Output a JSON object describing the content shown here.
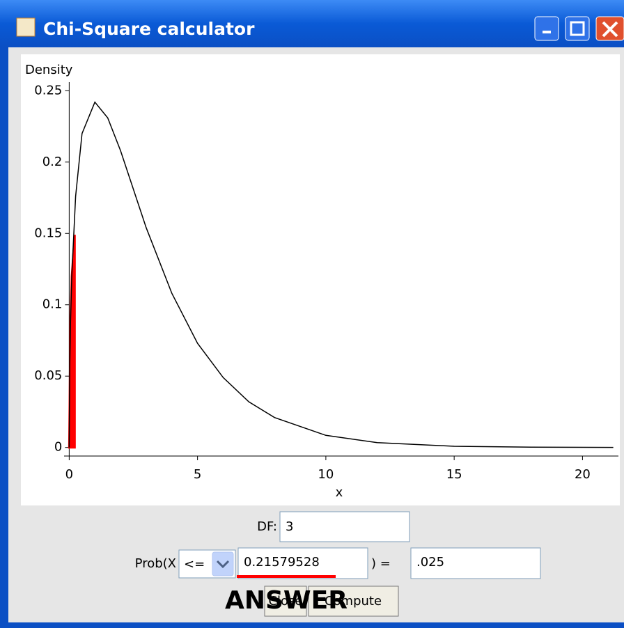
{
  "window": {
    "title": "Chi-Square calculator"
  },
  "chart_data": {
    "type": "line",
    "y_label": "Density",
    "x_label": "x",
    "curve": {
      "color": "#000000",
      "x": [
        0,
        0.02,
        0.05,
        0.1,
        0.25,
        0.5,
        1,
        1.5,
        2,
        3,
        4,
        5,
        6,
        7,
        8,
        10,
        12,
        15,
        18,
        21.2
      ],
      "values": [
        0,
        0.056,
        0.087,
        0.12,
        0.176,
        0.22,
        0.242,
        0.231,
        0.208,
        0.154,
        0.108,
        0.073,
        0.049,
        0.032,
        0.021,
        0.0085,
        0.0034,
        0.00085,
        0.0002,
        5e-05
      ]
    },
    "shade": {
      "color": "#ff0000",
      "x": [
        0,
        0.05,
        0.1,
        0.2158
      ],
      "values": [
        0,
        0.087,
        0.12,
        0.149
      ]
    },
    "xlim": [
      -0.2,
      21.4
    ],
    "ylim": [
      -0.006,
      0.256
    ],
    "xticks": [
      0,
      5,
      10,
      15,
      20
    ],
    "yticks": [
      0,
      0.05,
      0.1,
      0.15,
      0.2,
      0.25
    ]
  },
  "form": {
    "df_label": "DF:",
    "df_value": "3",
    "prob_label": "Prob(X",
    "operator": "<=",
    "x_value": "0.21579528",
    "equals_label": ") =",
    "prob_value": ".025",
    "buttons": [
      "Close",
      "Compute"
    ],
    "annotation": "ANSWER"
  }
}
